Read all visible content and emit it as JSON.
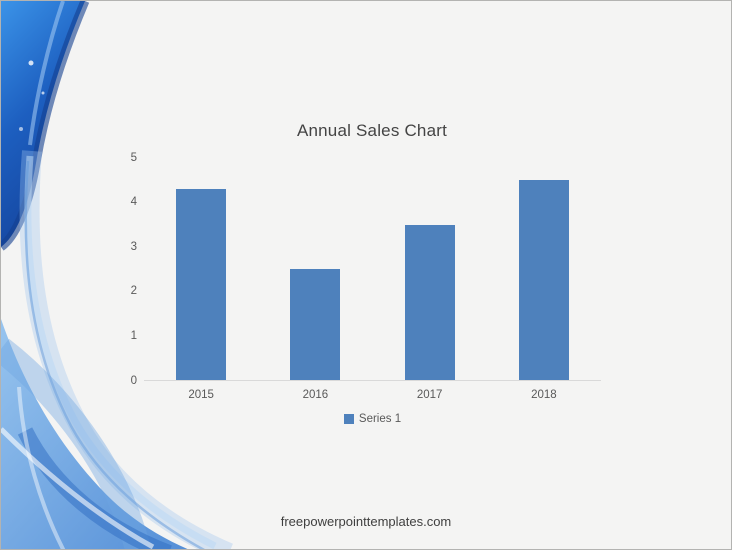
{
  "slide": {
    "footer": "freepowerpointtemplates.com"
  },
  "chart_data": {
    "type": "bar",
    "title": "Annual Sales Chart",
    "categories": [
      "2015",
      "2016",
      "2017",
      "2018"
    ],
    "series": [
      {
        "name": "Series 1",
        "values": [
          4.3,
          2.5,
          3.5,
          4.5
        ]
      }
    ],
    "xlabel": "",
    "ylabel": "",
    "ylim": [
      0,
      5
    ],
    "yticks": [
      0,
      1,
      2,
      3,
      4,
      5
    ],
    "grid": false,
    "legend_position": "bottom",
    "bar_color": "#4e81bc",
    "axis_line_color": "#d9d9d9",
    "tick_label_color": "#595959",
    "title_color": "#444444"
  },
  "decoration": {
    "name": "blue-wave-left",
    "corner_top_color": "#3b93e8",
    "corner_deep_color": "#15459e",
    "ribbon_light_color": "#9dc3ee",
    "bottom_wave_light": "#8fc0ee",
    "bottom_wave_deep": "#4484d4",
    "dark_edge_color": "#143f8f"
  }
}
